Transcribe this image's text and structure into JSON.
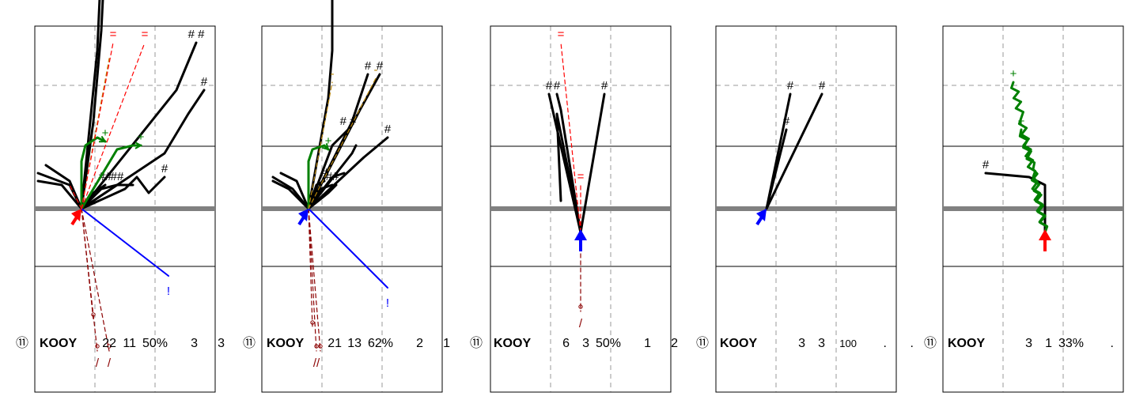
{
  "chart_data": {
    "type": "route-chart",
    "title": "",
    "colors": {
      "catch": "#000000",
      "run": "#008000",
      "incomplete": "#8b0000",
      "interception": "#0000ff",
      "drop": "#b8860b",
      "penalty": "#ff0000",
      "arrow_red": "#ff0000",
      "arrow_blue": "#0000ff",
      "scrimmage": "#808080"
    },
    "legend_symbols": {
      "catch": "#",
      "incomplete": "/",
      "interception": "!",
      "run": "+",
      "drop": "-",
      "penalty": "="
    },
    "panels": [
      {
        "stats": {
          "badge": "⑪",
          "name": "KOOY",
          "values": [
            "22",
            "11",
            "50%",
            "3",
            "3"
          ]
        },
        "start": [
          -11,
          0
        ],
        "arrow": "red",
        "routes": [
          {
            "kind": "catch",
            "pts": [
              [
                -11,
                0
              ],
              [
                -9,
                20
              ],
              [
                -7,
                40
              ],
              [
                -6,
                62
              ]
            ],
            "label": "##"
          },
          {
            "kind": "catch",
            "pts": [
              [
                -11,
                0
              ],
              [
                -8,
                22
              ],
              [
                -6,
                45
              ],
              [
                -5,
                65
              ],
              [
                -4,
                72
              ]
            ],
            "label": ""
          },
          {
            "kind": "catch",
            "pts": [
              [
                -11,
                0
              ],
              [
                10,
                14
              ],
              [
                16,
                24
              ],
              [
                20,
                30
              ]
            ],
            "label": "#"
          },
          {
            "kind": "catch",
            "pts": [
              [
                -11,
                0
              ],
              [
                13,
                30
              ],
              [
                18,
                42
              ]
            ],
            "label": "# #"
          },
          {
            "kind": "catch",
            "pts": [
              [
                -11,
                0
              ],
              [
                0,
                5
              ],
              [
                3,
                8
              ],
              [
                6,
                4
              ],
              [
                10,
                8
              ]
            ],
            "label": "#"
          },
          {
            "kind": "catch",
            "pts": [
              [
                -11,
                0
              ],
              [
                -8,
                4
              ],
              [
                -5,
                6
              ]
            ],
            "label": "##"
          },
          {
            "kind": "catch",
            "pts": [
              [
                -11,
                0
              ],
              [
                -6,
                5
              ],
              [
                -2,
                6
              ]
            ],
            "label": "##"
          },
          {
            "kind": "catch",
            "pts": [
              [
                -11,
                0
              ],
              [
                -14,
                6
              ],
              [
                -22,
                9
              ]
            ],
            "label": ""
          },
          {
            "kind": "catch",
            "pts": [
              [
                -11,
                0
              ],
              [
                -14,
                7
              ],
              [
                -20,
                11
              ]
            ],
            "label": ""
          },
          {
            "kind": "catch",
            "pts": [
              [
                -11,
                0
              ],
              [
                -16,
                6
              ],
              [
                -22,
                7
              ]
            ],
            "label": ""
          },
          {
            "kind": "catch",
            "pts": [
              [
                -11,
                0
              ],
              [
                -2,
                6
              ],
              [
                2,
                6
              ]
            ],
            "label": ""
          },
          {
            "kind": "run",
            "pts": [
              [
                -11,
                0
              ],
              [
                -11,
                12
              ],
              [
                -10,
                16
              ],
              [
                -7,
                18
              ],
              [
                -5,
                17
              ]
            ],
            "label": "+"
          },
          {
            "kind": "run",
            "pts": [
              [
                -11,
                0
              ],
              [
                -5,
                10
              ],
              [
                -2,
                15
              ],
              [
                2,
                16
              ],
              [
                4,
                16
              ]
            ],
            "label": "+"
          },
          {
            "kind": "incomplete",
            "pts": [
              [
                -11,
                0
              ],
              [
                -7,
                -36
              ]
            ],
            "label": "/"
          },
          {
            "kind": "incomplete",
            "pts": [
              [
                -11,
                0
              ],
              [
                -4,
                -36
              ]
            ],
            "label": "/"
          },
          {
            "kind": "incomplete",
            "pts": [
              [
                -11,
                0
              ],
              [
                -8,
                -28
              ]
            ],
            "label": ""
          },
          {
            "kind": "interception",
            "pts": [
              [
                -11,
                0
              ],
              [
                11,
                -17
              ]
            ],
            "label": "!"
          },
          {
            "kind": "drop",
            "pts": [
              [
                -11,
                0
              ],
              [
                -4,
                38
              ]
            ],
            "label": ""
          },
          {
            "kind": "penalty",
            "pts": [
              [
                -11,
                0
              ],
              [
                -3,
                42
              ]
            ],
            "label": "="
          },
          {
            "kind": "penalty",
            "pts": [
              [
                -11,
                0
              ],
              [
                5,
                42
              ]
            ],
            "label": "="
          },
          {
            "kind": "penalty",
            "pts": [
              [
                -11,
                0
              ],
              [
                -14,
                6
              ]
            ],
            "label": ""
          }
        ]
      },
      {
        "stats": {
          "badge": "⑪",
          "name": "KOOY",
          "values": [
            "21",
            "13",
            "62%",
            "2",
            "1"
          ]
        },
        "start": [
          -11,
          0
        ],
        "arrow": "blue",
        "routes": [
          {
            "kind": "catch",
            "pts": [
              [
                -11,
                0
              ],
              [
                0,
                22
              ],
              [
                4,
                34
              ]
            ],
            "label": "#"
          },
          {
            "kind": "catch",
            "pts": [
              [
                -11,
                0
              ],
              [
                2,
                25
              ],
              [
                7,
                34
              ]
            ],
            "label": "#"
          },
          {
            "kind": "catch",
            "pts": [
              [
                -11,
                0
              ],
              [
                -5,
                16
              ],
              [
                -1,
                20
              ]
            ],
            "label": "# #"
          },
          {
            "kind": "catch",
            "pts": [
              [
                -11,
                0
              ],
              [
                3,
                13
              ],
              [
                9,
                18
              ]
            ],
            "label": "#"
          },
          {
            "kind": "catch",
            "pts": [
              [
                -11,
                0
              ],
              [
                0,
                14
              ],
              [
                1,
                16
              ]
            ],
            "label": ""
          },
          {
            "kind": "catch",
            "pts": [
              [
                -11,
                0
              ],
              [
                -6,
                28
              ],
              [
                -5,
                40
              ],
              [
                -5,
                66
              ]
            ],
            "label": ""
          },
          {
            "kind": "catch",
            "pts": [
              [
                -11,
                0
              ],
              [
                -9,
                6
              ],
              [
                -7,
                7
              ]
            ],
            "label": "#"
          },
          {
            "kind": "catch",
            "pts": [
              [
                -11,
                0
              ],
              [
                -8,
                5
              ],
              [
                -5,
                6
              ]
            ],
            "label": "##"
          },
          {
            "kind": "catch",
            "pts": [
              [
                -11,
                0
              ],
              [
                -6,
                4
              ],
              [
                -4,
                6
              ]
            ],
            "label": ""
          },
          {
            "kind": "catch",
            "pts": [
              [
                -11,
                0
              ],
              [
                -15,
                5
              ],
              [
                -20,
                8
              ]
            ],
            "label": ""
          },
          {
            "kind": "catch",
            "pts": [
              [
                -11,
                0
              ],
              [
                -14,
                7
              ],
              [
                -18,
                9
              ]
            ],
            "label": ""
          },
          {
            "kind": "catch",
            "pts": [
              [
                -11,
                0
              ],
              [
                -16,
                5
              ],
              [
                -20,
                7
              ]
            ],
            "label": ""
          },
          {
            "kind": "catch",
            "pts": [
              [
                -11,
                0
              ],
              [
                -5,
                8
              ],
              [
                -2,
                9
              ]
            ],
            "label": ""
          },
          {
            "kind": "run",
            "pts": [
              [
                -11,
                0
              ],
              [
                -11,
                12
              ],
              [
                -10,
                15
              ],
              [
                -7,
                16
              ],
              [
                -6,
                15
              ]
            ],
            "label": "+"
          },
          {
            "kind": "incomplete",
            "pts": [
              [
                -11,
                0
              ],
              [
                -9,
                -36
              ]
            ],
            "label": "//"
          },
          {
            "kind": "incomplete",
            "pts": [
              [
                -11,
                0
              ],
              [
                -8,
                -36
              ]
            ],
            "label": ""
          },
          {
            "kind": "incomplete",
            "pts": [
              [
                -11,
                0
              ],
              [
                -10,
                -30
              ]
            ],
            "label": ""
          },
          {
            "kind": "interception",
            "pts": [
              [
                -11,
                0
              ],
              [
                9,
                -20
              ]
            ],
            "label": "!"
          },
          {
            "kind": "drop",
            "pts": [
              [
                -11,
                0
              ],
              [
                -5,
                32
              ]
            ],
            "label": "-"
          },
          {
            "kind": "drop",
            "pts": [
              [
                -11,
                0
              ],
              [
                6,
                33
              ]
            ],
            "label": "-"
          }
        ]
      },
      {
        "stats": {
          "badge": "⑪",
          "name": "KOOY",
          "values": [
            "6",
            "3",
            "50%",
            "1",
            "2"
          ]
        },
        "start": [
          0,
          -6
        ],
        "arrow": "blue",
        "routes": [
          {
            "kind": "catch",
            "pts": [
              [
                0,
                -6
              ],
              [
                -8,
                29
              ]
            ],
            "label": "#"
          },
          {
            "kind": "catch",
            "pts": [
              [
                0,
                -6
              ],
              [
                -5,
                25
              ],
              [
                -6,
                29
              ]
            ],
            "label": "#"
          },
          {
            "kind": "catch",
            "pts": [
              [
                0,
                -6
              ],
              [
                -6,
                24
              ],
              [
                -5,
                2
              ]
            ],
            "label": ""
          },
          {
            "kind": "catch",
            "pts": [
              [
                0,
                -6
              ],
              [
                6,
                29
              ]
            ],
            "label": "#"
          },
          {
            "kind": "incomplete",
            "pts": [
              [
                0,
                -6
              ],
              [
                0,
                -26
              ]
            ],
            "label": "/"
          },
          {
            "kind": "penalty",
            "pts": [
              [
                0,
                -6
              ],
              [
                0,
                6
              ]
            ],
            "label": "="
          },
          {
            "kind": "penalty",
            "pts": [
              [
                0,
                -6
              ],
              [
                -5,
                42
              ]
            ],
            "label": "="
          }
        ]
      },
      {
        "stats": {
          "badge": "⑪",
          "name": "KOOY",
          "values": [
            "3",
            "3",
            "100",
            ".",
            "."
          ]
        },
        "start": [
          -10,
          0
        ],
        "arrow": "blue",
        "routes": [
          {
            "kind": "catch",
            "pts": [
              [
                -10,
                0
              ],
              [
                -4,
                29
              ]
            ],
            "label": "#"
          },
          {
            "kind": "catch",
            "pts": [
              [
                -10,
                0
              ],
              [
                -5,
                20
              ]
            ],
            "label": "#"
          },
          {
            "kind": "catch",
            "pts": [
              [
                -10,
                0
              ],
              [
                4,
                29
              ]
            ],
            "label": "#"
          }
        ]
      },
      {
        "stats": {
          "badge": "⑪",
          "name": "KOOY",
          "values": [
            "3",
            "1",
            "33%",
            "."
          ]
        },
        "start": [
          3,
          -6
        ],
        "arrow": "red",
        "routes": [
          {
            "kind": "catch",
            "pts": [
              [
                3,
                -6
              ],
              [
                3,
                6
              ],
              [
                -1,
                8
              ],
              [
                -12,
                9
              ]
            ],
            "label": "#"
          },
          {
            "kind": "run-wavy",
            "pts": [
              [
                3,
                -6
              ],
              [
                0,
                8
              ],
              [
                -3,
                23
              ],
              [
                -5,
                32
              ]
            ],
            "label": "+"
          },
          {
            "kind": "run-wavy",
            "pts": [
              [
                3,
                -6
              ],
              [
                0,
                10
              ],
              [
                -3,
                20
              ]
            ],
            "label": "+"
          }
        ]
      }
    ]
  }
}
